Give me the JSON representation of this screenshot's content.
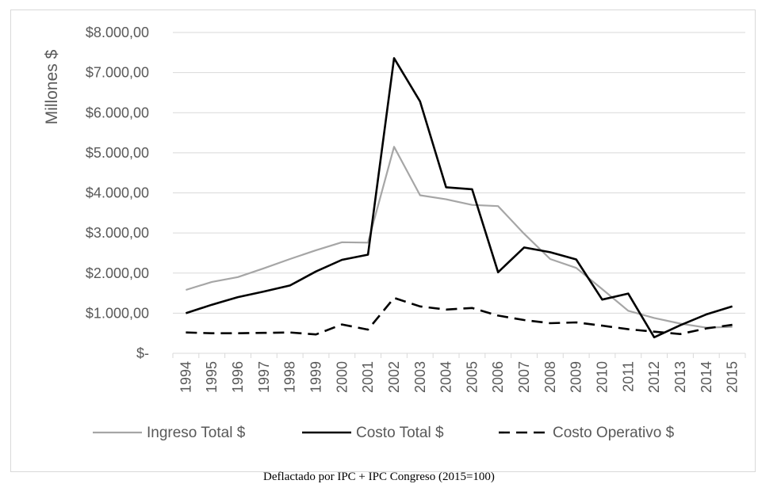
{
  "caption": "Deflactado por IPC + IPC Congreso (2015=100)",
  "chart_data": {
    "type": "line",
    "title": "",
    "ylabel": "Millones $",
    "xlabel": "",
    "ylim": [
      0,
      8000
    ],
    "ytick_values": [
      0,
      1000,
      2000,
      3000,
      4000,
      5000,
      6000,
      7000,
      8000
    ],
    "ytick_labels": [
      "$-",
      "$1.000,00",
      "$2.000,00",
      "$3.000,00",
      "$4.000,00",
      "$5.000,00",
      "$6.000,00",
      "$7.000,00",
      "$8.000,00"
    ],
    "grid": true,
    "legend_position": "bottom",
    "categories": [
      "1994",
      "1995",
      "1996",
      "1997",
      "1998",
      "1999",
      "2000",
      "2001",
      "2002",
      "2003",
      "2004",
      "2005",
      "2006",
      "2007",
      "2008",
      "2009",
      "2010",
      "2011",
      "2012",
      "2013",
      "2014",
      "2015"
    ],
    "series": [
      {
        "name": "Ingreso Total $",
        "color": "#a6a6a6",
        "dash": "solid",
        "values": [
          1580,
          1780,
          1900,
          2120,
          2350,
          2570,
          2770,
          2760,
          5150,
          3940,
          3840,
          3700,
          3670,
          2980,
          2350,
          2130,
          1600,
          1060,
          880,
          740,
          640,
          660
        ]
      },
      {
        "name": "Costo Total $",
        "color": "#000000",
        "dash": "solid",
        "values": [
          1000,
          1210,
          1400,
          1540,
          1690,
          2040,
          2330,
          2460,
          7360,
          6280,
          4140,
          4090,
          2020,
          2640,
          2520,
          2340,
          1340,
          1490,
          400,
          700,
          970,
          1170
        ]
      },
      {
        "name": "Costo Operativo $",
        "color": "#000000",
        "dash": "dashed",
        "values": [
          520,
          500,
          500,
          510,
          520,
          470,
          720,
          590,
          1380,
          1170,
          1090,
          1130,
          940,
          830,
          750,
          770,
          690,
          600,
          540,
          480,
          620,
          710
        ]
      }
    ]
  }
}
